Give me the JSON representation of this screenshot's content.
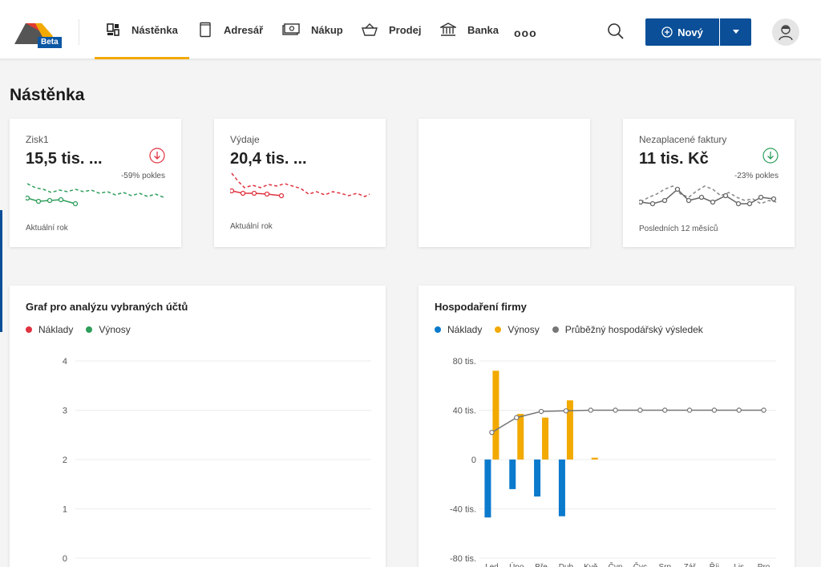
{
  "nav": {
    "logo_badge": "Beta",
    "items": [
      {
        "id": "dashboard",
        "label": "Nástěnka",
        "active": true
      },
      {
        "id": "contacts",
        "label": "Adresář",
        "active": false
      },
      {
        "id": "purchase",
        "label": "Nákup",
        "active": false
      },
      {
        "id": "sales",
        "label": "Prodej",
        "active": false
      },
      {
        "id": "bank",
        "label": "Banka",
        "active": false
      }
    ],
    "more_label": "ooo",
    "new_button_label": "Nový"
  },
  "page": {
    "title": "Nástěnka"
  },
  "kpis": [
    {
      "label": "Zisk1",
      "value": "15,5 tis. ...",
      "trend": "-59% pokles",
      "footer": "Aktuální rok",
      "color": "#2e9e5b",
      "trend_direction": "down-red"
    },
    {
      "label": "Výdaje",
      "value": "20,4 tis. ...",
      "trend": "",
      "footer": "Aktuální rok",
      "color": "#e0323f"
    },
    {
      "label": "",
      "value": "",
      "trend": "",
      "footer": ""
    },
    {
      "label": "Nezaplacené faktury",
      "value": "11 tis. Kč",
      "trend": "-23% pokles",
      "footer": "Posledních 12 měsíců",
      "color": "#777777",
      "trend_direction": "down-green"
    }
  ],
  "charts": {
    "accounts": {
      "title": "Graf pro analýzu vybraných účtů"
    },
    "finance": {
      "title": "Hospodaření firmy"
    }
  },
  "colors": {
    "primary": "#0a4f98",
    "accent": "#f2a900",
    "red": "#e0323f",
    "green": "#2e9e5b",
    "blue": "#0a7acc",
    "yellow": "#f2a900",
    "grey": "#777777"
  },
  "chart_data": [
    {
      "type": "line",
      "title": "Graf pro analýzu vybraných účtů",
      "series": [
        {
          "name": "Náklady",
          "color": "#e0323f",
          "values": []
        },
        {
          "name": "Výnosy",
          "color": "#2e9e5b",
          "values": []
        }
      ],
      "ylim": [
        0,
        4
      ],
      "yticks": [
        "0",
        "1",
        "2",
        "3",
        "4"
      ],
      "grid": true,
      "legend": "top-left"
    },
    {
      "type": "bar",
      "title": "Hospodaření firmy",
      "categories": [
        "Led",
        "Úno",
        "Bře",
        "Dub",
        "Kvě",
        "Čvn",
        "Čvc",
        "Srp",
        "Zář",
        "Říj",
        "Lis",
        "Pro"
      ],
      "series": [
        {
          "name": "Náklady",
          "color": "#0a7acc",
          "values": [
            -47,
            -24,
            -30,
            -46,
            0,
            0,
            0,
            0,
            0,
            0,
            0,
            0
          ]
        },
        {
          "name": "Výnosy",
          "color": "#f2a900",
          "values": [
            72,
            37,
            34,
            48,
            1.5,
            0,
            0,
            0,
            0,
            0,
            0,
            0
          ]
        },
        {
          "name": "Průběžný hospodářský výsledek",
          "color": "#777777",
          "type": "line",
          "values": [
            22,
            34,
            39,
            39.5,
            40,
            40,
            40,
            40,
            40,
            40,
            40,
            40
          ]
        }
      ],
      "ylim": [
        -80,
        80
      ],
      "yticks": [
        "-80 tis.",
        "-40 tis.",
        "0",
        "40 tis.",
        "80 tis."
      ],
      "grid": true,
      "legend": "top-left"
    }
  ]
}
